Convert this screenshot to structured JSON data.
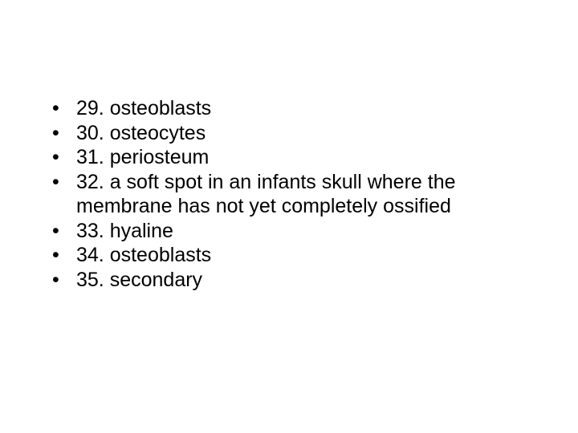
{
  "slide": {
    "background_color": "#ffffff",
    "text_color": "#000000",
    "font_family": "Arial",
    "font_size_pt": 19,
    "bullet_char": "•",
    "items": [
      "29. osteoblasts",
      "30. osteocytes",
      "31. periosteum",
      "32. a soft spot in an infants skull where the membrane has not yet completely ossified",
      "33. hyaline",
      "34. osteoblasts",
      "35. secondary"
    ]
  }
}
